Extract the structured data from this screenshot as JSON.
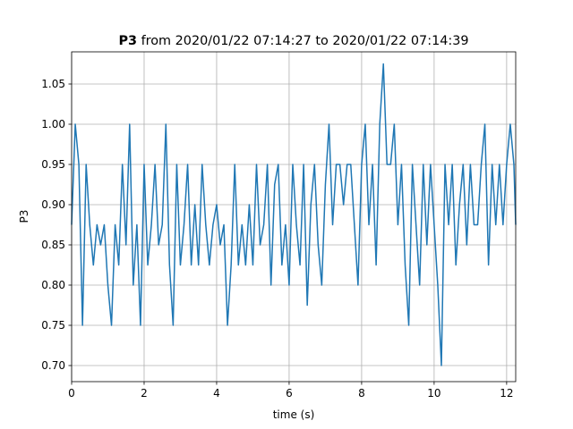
{
  "chart_data": {
    "type": "line",
    "title": "P3",
    "title_suffix": "from 2020/01/22 07:14:27 to 2020/01/22 07:14:39",
    "x_label": "time (s)",
    "y_label": "P3",
    "xlim": [
      0,
      12.25
    ],
    "ylim": [
      0.68,
      1.09
    ],
    "xticks": [
      0,
      2,
      4,
      6,
      8,
      10,
      12
    ],
    "yticks": [
      {
        "value": 0.7,
        "label": "0.70"
      },
      {
        "value": 0.75,
        "label": "0.75"
      },
      {
        "value": 0.8,
        "label": "0.80"
      },
      {
        "value": 0.85,
        "label": "0.85"
      },
      {
        "value": 0.9,
        "label": "0.90"
      },
      {
        "value": 0.95,
        "label": "0.95"
      },
      {
        "value": 1.0,
        "label": "1.00"
      },
      {
        "value": 1.05,
        "label": "1.05"
      }
    ],
    "grid": true,
    "x": [
      0,
      0.1,
      0.2,
      0.3,
      0.4,
      0.5,
      0.6,
      0.7,
      0.8,
      0.9,
      1.0,
      1.1,
      1.2,
      1.3,
      1.4,
      1.5,
      1.6,
      1.7,
      1.8,
      1.9,
      2.0,
      2.1,
      2.2,
      2.3,
      2.4,
      2.5,
      2.6,
      2.7,
      2.8,
      2.9,
      3.0,
      3.1,
      3.2,
      3.3,
      3.4,
      3.5,
      3.6,
      3.7,
      3.8,
      3.9,
      4.0,
      4.1,
      4.2,
      4.3,
      4.4,
      4.5,
      4.6,
      4.7,
      4.8,
      4.9,
      5.0,
      5.1,
      5.2,
      5.3,
      5.4,
      5.5,
      5.6,
      5.7,
      5.8,
      5.9,
      6.0,
      6.1,
      6.2,
      6.3,
      6.4,
      6.5,
      6.6,
      6.7,
      6.8,
      6.9,
      7.0,
      7.1,
      7.2,
      7.3,
      7.4,
      7.5,
      7.6,
      7.7,
      7.8,
      7.9,
      8.0,
      8.1,
      8.2,
      8.3,
      8.4,
      8.5,
      8.6,
      8.7,
      8.8,
      8.9,
      9.0,
      9.1,
      9.2,
      9.3,
      9.4,
      9.5,
      9.6,
      9.7,
      9.8,
      9.9,
      10.0,
      10.1,
      10.2,
      10.3,
      10.4,
      10.5,
      10.6,
      10.7,
      10.8,
      10.9,
      11.0,
      11.1,
      11.2,
      11.3,
      11.4,
      11.5,
      11.6,
      11.7,
      11.8,
      11.9,
      12.0,
      12.1,
      12.2,
      12.25
    ],
    "series": [
      {
        "name": "P3",
        "color": "#1f77b4",
        "values": [
          0.875,
          1.0,
          0.95,
          0.75,
          0.95,
          0.875,
          0.825,
          0.875,
          0.85,
          0.875,
          0.8,
          0.75,
          0.875,
          0.825,
          0.95,
          0.85,
          1.0,
          0.8,
          0.875,
          0.75,
          0.95,
          0.825,
          0.875,
          0.95,
          0.85,
          0.875,
          1.0,
          0.825,
          0.75,
          0.95,
          0.825,
          0.875,
          0.95,
          0.825,
          0.9,
          0.825,
          0.95,
          0.875,
          0.825,
          0.875,
          0.9,
          0.85,
          0.875,
          0.75,
          0.825,
          0.95,
          0.825,
          0.875,
          0.825,
          0.9,
          0.825,
          0.95,
          0.85,
          0.875,
          0.95,
          0.8,
          0.925,
          0.95,
          0.825,
          0.875,
          0.8,
          0.95,
          0.875,
          0.825,
          0.95,
          0.775,
          0.9,
          0.95,
          0.85,
          0.8,
          0.925,
          1.0,
          0.875,
          0.95,
          0.95,
          0.9,
          0.95,
          0.95,
          0.875,
          0.8,
          0.95,
          1.0,
          0.875,
          0.95,
          0.825,
          1.0,
          1.075,
          0.95,
          0.95,
          1.0,
          0.875,
          0.95,
          0.825,
          0.75,
          0.95,
          0.875,
          0.8,
          0.95,
          0.85,
          0.95,
          0.875,
          0.8,
          0.7,
          0.95,
          0.875,
          0.95,
          0.825,
          0.9,
          0.95,
          0.85,
          0.95,
          0.875,
          0.875,
          0.95,
          1.0,
          0.825,
          0.95,
          0.875,
          0.95,
          0.875,
          0.95,
          1.0,
          0.95,
          0.875
        ]
      }
    ]
  }
}
